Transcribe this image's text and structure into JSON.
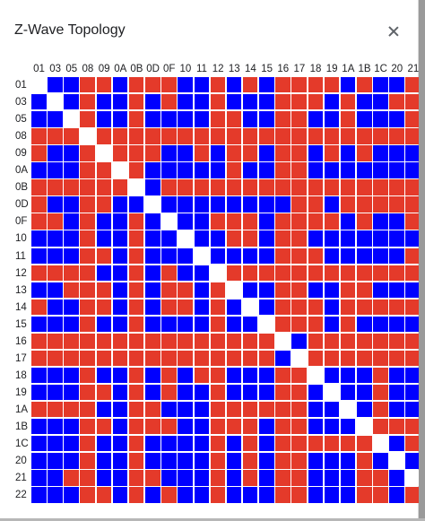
{
  "dialog": {
    "title": "Z-Wave Topology",
    "close_icon": "close-icon"
  },
  "nodes": [
    "01",
    "03",
    "05",
    "08",
    "09",
    "0A",
    "0B",
    "0D",
    "0F",
    "10",
    "11",
    "12",
    "13",
    "14",
    "15",
    "16",
    "17",
    "18",
    "19",
    "1A",
    "1B",
    "1C",
    "20",
    "21",
    "22"
  ],
  "colors": {
    "connected": "#0000ff",
    "not_connected": "#e43a2a",
    "self": "#ffffff"
  },
  "legend": {
    "B": "connected",
    "R": "not connected",
    "W": "self"
  },
  "matrix": [
    "WBBRRBRRRBBRBRBRRRRBRBBRB",
    "BWBRBBRBRBBRBBBRRRBRBBRRR",
    "BBWRBBRBBBBRRBBRRBBRBBBRB",
    "RRRWRRRRRRRRRRRRRRRRRRRRR",
    "RBBRWRRRBBRBRRBRRBRBRBBBR",
    "BBBRRWRBBBBBRBBRRBBBBBBBB",
    "RRRRRRWBRRRRRRRRRRRRRRRRR",
    "RBBRRBBWBBBBBBBBRRBRRRRRR",
    "RRBRBBRBWBBRRRBRRRRBRBBRR",
    "BBBRBBRBBWBBRRBRRBBBBBBBB",
    "BBBRRBRBBBWBBBBRRRBBBBBRB",
    "RRRRBBRBRBBWRRRRRRRRRRRRR",
    "BBRRRBRBRRBRWBBRRBBRRBBBR",
    "RBBRRBRBRRBRBWBRRRBRRRRRR",
    "BBBRBBRBBBBRBBWRRRBRBBBBR",
    "RRRRRRRRRRRRRRRWBRRRRRRRR",
    "RRRRRRRRRRRRRRRBWRRRRRRRR",
    "BBBRBBRBRBRRBBBRRWBBBRBBB",
    "BBBRRBRBRBBRBBBRRBWBBRBBB",
    "RRRRBBRRBBBRRRRRRBBWBRBBB",
    "BBBRRBRRRBBRRRBRRBBBWRRRR",
    "BBBRBBRBBBBRBRBRRRRRRWBRR",
    "BBBRBBRBBBBRBRBRRBBBRBWBB",
    "BBRRBBRRBBBRBRBRRBBBRRBWR",
    "BBBRRBRBRBBRBBBRRBBBRRBRW"
  ]
}
